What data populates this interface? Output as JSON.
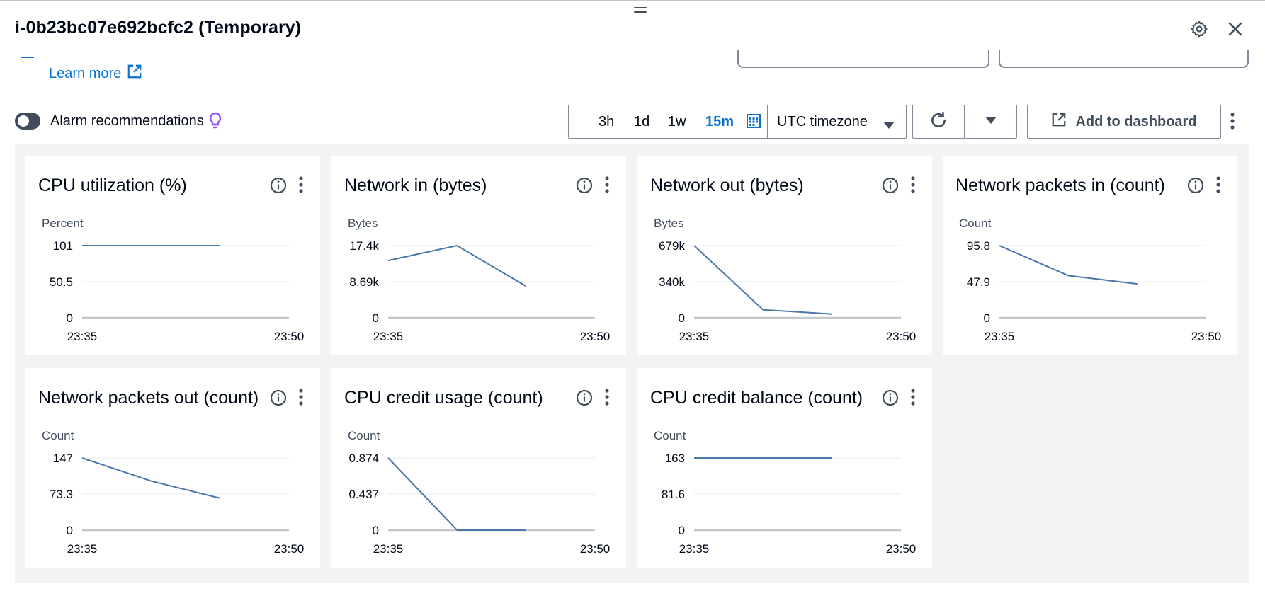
{
  "header": {
    "title": "i-0b23bc07e692bcfc2 (Temporary)",
    "settings_icon": "gear-icon",
    "close_icon": "close-icon"
  },
  "learn_more": {
    "label": "Learn more",
    "icon": "external-link-icon"
  },
  "alarm_recommendations": {
    "label": "Alarm recommendations",
    "enabled": false,
    "icon": "lightbulb-icon"
  },
  "time_range": {
    "options": [
      "3h",
      "1d",
      "1w",
      "15m"
    ],
    "selected": "15m",
    "timezone": "UTC timezone"
  },
  "toolbar": {
    "refresh_icon": "refresh-icon",
    "add_to_dashboard": "Add to dashboard"
  },
  "colors": {
    "line": "#4a76a8",
    "link": "#0972d3",
    "bulb": "#8c4fff"
  },
  "widgets": [
    {
      "title": "CPU utilization (%)",
      "unit": "Percent",
      "chart_data": {
        "type": "line",
        "x": [
          "23:35",
          "23:40",
          "23:45"
        ],
        "values": [
          101,
          101,
          101
        ],
        "yticks": [
          "101",
          "50.5",
          "0"
        ],
        "ylim": [
          0,
          101
        ],
        "xlabels": [
          "23:35",
          "23:50"
        ]
      }
    },
    {
      "title": "Network in (bytes)",
      "unit": "Bytes",
      "chart_data": {
        "type": "line",
        "x": [
          "23:35",
          "23:40",
          "23:45"
        ],
        "values": [
          13800,
          17400,
          7600
        ],
        "yticks": [
          "17.4k",
          "8.69k",
          "0"
        ],
        "ylim": [
          0,
          17400
        ],
        "xlabels": [
          "23:35",
          "23:50"
        ]
      }
    },
    {
      "title": "Network out (bytes)",
      "unit": "Bytes",
      "chart_data": {
        "type": "line",
        "x": [
          "23:35",
          "23:40",
          "23:45"
        ],
        "values": [
          679000,
          75000,
          35000
        ],
        "yticks": [
          "679k",
          "340k",
          "0"
        ],
        "ylim": [
          0,
          679000
        ],
        "xlabels": [
          "23:35",
          "23:50"
        ]
      }
    },
    {
      "title": "Network packets in (count)",
      "unit": "Count",
      "chart_data": {
        "type": "line",
        "x": [
          "23:35",
          "23:40",
          "23:45"
        ],
        "values": [
          95.8,
          56,
          45
        ],
        "yticks": [
          "95.8",
          "47.9",
          "0"
        ],
        "ylim": [
          0,
          95.8
        ],
        "xlabels": [
          "23:35",
          "23:50"
        ]
      }
    },
    {
      "title": "Network packets out (count)",
      "unit": "Count",
      "chart_data": {
        "type": "line",
        "x": [
          "23:35",
          "23:40",
          "23:45"
        ],
        "values": [
          147,
          100,
          65
        ],
        "yticks": [
          "147",
          "73.3",
          "0"
        ],
        "ylim": [
          0,
          147
        ],
        "xlabels": [
          "23:35",
          "23:50"
        ]
      }
    },
    {
      "title": "CPU credit usage (count)",
      "unit": "Count",
      "chart_data": {
        "type": "line",
        "x": [
          "23:35",
          "23:40",
          "23:45"
        ],
        "values": [
          0.874,
          0,
          0
        ],
        "yticks": [
          "0.874",
          "0.437",
          "0"
        ],
        "ylim": [
          0,
          0.874
        ],
        "xlabels": [
          "23:35",
          "23:50"
        ]
      }
    },
    {
      "title": "CPU credit balance (count)",
      "unit": "Count",
      "chart_data": {
        "type": "line",
        "x": [
          "23:35",
          "23:40",
          "23:45"
        ],
        "values": [
          163,
          163,
          163
        ],
        "yticks": [
          "163",
          "81.6",
          "0"
        ],
        "ylim": [
          0,
          163
        ],
        "xlabels": [
          "23:35",
          "23:50"
        ]
      }
    }
  ]
}
